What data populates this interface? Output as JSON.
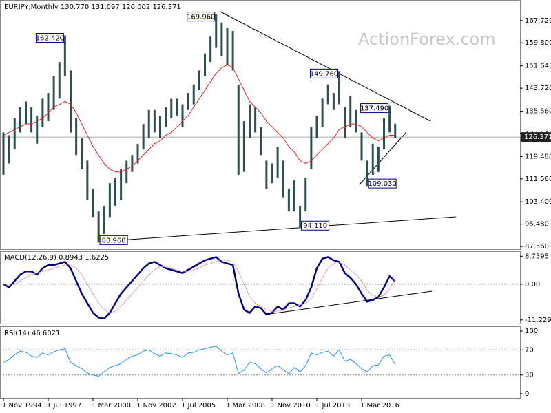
{
  "chart_data": [
    {
      "type": "range-bar",
      "title": "EURJPY,Monthly  130.770 131.097 126.002 126.371",
      "watermark": "ActionForex.com",
      "categories": [
        "1 Nov 1994",
        null,
        null,
        null,
        null,
        null,
        null,
        null,
        "1 Jul 1997",
        null,
        null,
        null,
        null,
        null,
        null,
        null,
        "1 Mar 2000",
        null,
        null,
        null,
        null,
        null,
        null,
        null,
        "1 Nov 2002",
        null,
        null,
        null,
        null,
        null,
        null,
        null,
        "1 Jul 2005",
        null,
        null,
        null,
        null,
        null,
        null,
        null,
        "1 Mar 2008",
        null,
        null,
        null,
        null,
        null,
        null,
        null,
        "1 Nov 2010",
        null,
        null,
        null,
        null,
        null,
        null,
        null,
        "1 Jul 2013",
        null,
        null,
        null,
        null,
        null,
        null,
        null,
        "1 Mar 2016",
        null,
        null,
        null,
        null,
        null,
        null
      ],
      "series": [
        {
          "name": "low",
          "color": "#2f4f4f",
          "values": [
            113,
            117,
            122,
            128,
            131,
            128,
            124,
            130,
            132,
            136,
            140,
            148,
            128,
            120,
            115,
            104,
            98,
            88.96,
            92,
            98,
            102,
            104,
            110,
            114,
            117,
            122,
            126,
            128,
            126,
            130,
            133,
            134,
            130,
            136,
            138,
            143,
            148,
            153,
            158,
            155,
            152,
            150,
            113,
            114,
            126,
            128,
            120,
            108,
            110,
            112,
            105,
            100,
            100,
            94.11,
            100,
            115,
            126,
            130,
            138,
            136,
            138,
            126,
            130,
            128,
            118,
            109.03,
            113,
            114,
            122,
            128,
            126.002
          ]
        },
        {
          "name": "high",
          "color": "#2f4f4f",
          "values": [
            128,
            127,
            133,
            137,
            139,
            137,
            134,
            140,
            142,
            148,
            153,
            162.42,
            150,
            133,
            126,
            118,
            108,
            100,
            102,
            110,
            112,
            115,
            118,
            120,
            124,
            131,
            136,
            136,
            134,
            137,
            140,
            140,
            138,
            142,
            145,
            150,
            156,
            162,
            169.96,
            167,
            165,
            164,
            145,
            132,
            138,
            137,
            130,
            118,
            117,
            123,
            118,
            108,
            111,
            102,
            112,
            130,
            134,
            140,
            145,
            142,
            149.76,
            137,
            141,
            136,
            128,
            118,
            124,
            123,
            133,
            137.49,
            131.097
          ]
        },
        {
          "name": "ma",
          "color": "#e02020",
          "values": [
            127,
            128,
            129,
            130,
            131,
            131,
            132,
            133,
            135,
            137,
            138,
            139,
            138,
            135,
            131,
            127,
            123,
            120,
            117,
            115,
            114,
            114,
            115,
            116,
            118,
            120,
            122,
            124,
            125,
            127,
            128,
            130,
            132,
            134,
            137,
            140,
            143,
            146,
            149,
            151,
            152,
            151,
            147,
            143,
            139,
            137,
            135,
            132,
            130,
            128,
            126,
            123,
            121,
            118,
            117,
            118,
            120,
            122,
            124,
            126,
            129,
            130,
            131,
            131,
            130,
            128,
            126,
            125,
            126,
            127,
            127
          ]
        }
      ],
      "annotations": [
        {
          "label": "169.960",
          "value": 169.96
        },
        {
          "label": "162.420",
          "value": 162.42
        },
        {
          "label": "88.960",
          "value": 88.96
        },
        {
          "label": "94.110",
          "value": 94.11
        },
        {
          "label": "149.760",
          "value": 149.76
        },
        {
          "label": "137.490",
          "value": 137.49
        },
        {
          "label": "109.030",
          "value": 109.03
        }
      ],
      "current_price": {
        "value": 126.371,
        "label": "126.371"
      },
      "ylim": [
        86.6,
        175.0
      ],
      "yticks": [
        {
          "value": 167.72,
          "label": "167.720"
        },
        {
          "value": 159.8,
          "label": "159.800"
        },
        {
          "value": 151.64,
          "label": "151.640"
        },
        {
          "value": 143.72,
          "label": "143.720"
        },
        {
          "value": 135.56,
          "label": "135.560"
        },
        {
          "value": 127.64,
          "label": "127.640"
        },
        {
          "value": 119.48,
          "label": "119.480"
        },
        {
          "value": 111.56,
          "label": "111.560"
        },
        {
          "value": 103.4,
          "label": "103.400"
        },
        {
          "value": 95.48,
          "label": "95.480"
        },
        {
          "value": 87.56,
          "label": "87.560"
        }
      ]
    },
    {
      "type": "line",
      "title": "MACD(12,26,9) 0.8943 1.6225",
      "series": [
        {
          "name": "macd",
          "color": "#000080",
          "values": [
            0,
            -1,
            1,
            3,
            4,
            4,
            3,
            5,
            6,
            6,
            6.5,
            7,
            5,
            1,
            -3,
            -6,
            -9,
            -10.5,
            -10.8,
            -9,
            -6,
            -3,
            -1,
            1,
            3,
            5,
            6.5,
            7,
            6,
            5,
            4.5,
            4,
            3.5,
            4.5,
            5.5,
            6.5,
            7.5,
            8,
            8.5,
            7,
            6.5,
            6,
            -3,
            -8,
            -9,
            -7,
            -7.5,
            -9.5,
            -9,
            -7,
            -8,
            -6,
            -6,
            -7,
            -5,
            -1,
            5,
            8,
            8.5,
            7.5,
            7,
            3.5,
            2,
            0,
            -3,
            -5.5,
            -5,
            -4,
            -1,
            2.5,
            0.8943
          ]
        },
        {
          "name": "signal",
          "color": "#e08080",
          "values": [
            0,
            0,
            0,
            1,
            2,
            3,
            3.5,
            4,
            4.5,
            5,
            5.5,
            6,
            6,
            5,
            3,
            0,
            -3,
            -6,
            -8,
            -9,
            -8.5,
            -7,
            -5,
            -3,
            -1,
            1,
            3,
            4.5,
            5.5,
            5.5,
            5,
            4.5,
            4,
            4,
            4.5,
            5,
            6,
            6.5,
            7,
            7.5,
            7.5,
            7,
            4,
            0,
            -4,
            -6,
            -7,
            -8,
            -8.5,
            -8.5,
            -8,
            -7.5,
            -7,
            -6.5,
            -6,
            -4.5,
            -1.5,
            2,
            5,
            6.5,
            7,
            6,
            4.5,
            3,
            1,
            -2,
            -3.5,
            -4,
            -3.5,
            -1.5,
            1.6225
          ]
        }
      ],
      "ylim": [
        -12.35,
        10.33
      ],
      "yticks": [
        {
          "value": 8.7595,
          "label": "8.7595"
        },
        {
          "value": 0,
          "label": "0.00"
        },
        {
          "value": -11.2299,
          "label": "-11.2299"
        }
      ]
    },
    {
      "type": "line",
      "title": "RSI(14) 46.6021",
      "series": [
        {
          "name": "rsi",
          "color": "#1e90ff",
          "values": [
            50,
            55,
            62,
            68,
            66,
            60,
            58,
            65,
            62,
            67,
            70,
            72,
            50,
            45,
            40,
            33,
            30,
            28,
            35,
            42,
            45,
            48,
            55,
            60,
            62,
            68,
            70,
            64,
            60,
            65,
            64,
            62,
            58,
            65,
            66,
            70,
            72,
            74,
            76,
            68,
            62,
            65,
            32,
            38,
            50,
            48,
            40,
            33,
            40,
            45,
            38,
            32,
            42,
            35,
            45,
            65,
            62,
            66,
            68,
            60,
            70,
            52,
            55,
            48,
            40,
            35,
            45,
            46,
            60,
            62,
            46.6021
          ]
        }
      ],
      "ylim": [
        -6.6,
        107.7
      ],
      "yticks": [
        100,
        70,
        30,
        0
      ]
    }
  ]
}
